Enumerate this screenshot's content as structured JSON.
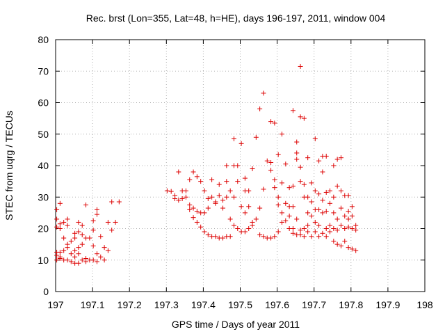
{
  "chart_data": {
    "type": "scatter",
    "title": "Rec. brst (Lon=355, Lat=48, h=HE), days 196-197, 2011, window 004",
    "xlabel": "GPS time / Days of year 2011",
    "ylabel": "STEC from uqrg / TECUs",
    "xlim": [
      197,
      198
    ],
    "ylim": [
      0,
      80
    ],
    "xticks": [
      197,
      197.1,
      197.2,
      197.3,
      197.4,
      197.5,
      197.6,
      197.7,
      197.8,
      197.9,
      198
    ],
    "xtick_labels": [
      "197",
      "197.1",
      "197.2",
      "197.3",
      "197.4",
      "197.5",
      "197.6",
      "197.7",
      "197.8",
      "197.9",
      "198"
    ],
    "yticks": [
      0,
      10,
      20,
      30,
      40,
      50,
      60,
      70,
      80
    ],
    "ytick_labels": [
      "0",
      "10",
      "20",
      "30",
      "40",
      "50",
      "60",
      "70",
      "80"
    ],
    "grid": true,
    "marker": "+",
    "color": "#dd0000",
    "series": [
      {
        "name": "STEC",
        "points": [
          [
            197.003,
            26
          ],
          [
            197.003,
            23
          ],
          [
            197.003,
            20.5
          ],
          [
            197.003,
            12.5
          ],
          [
            197.003,
            11.5
          ],
          [
            197.003,
            10
          ],
          [
            197.012,
            28
          ],
          [
            197.012,
            21.5
          ],
          [
            197.012,
            20
          ],
          [
            197.012,
            12.5
          ],
          [
            197.012,
            11
          ],
          [
            197.012,
            10.5
          ],
          [
            197.022,
            22
          ],
          [
            197.022,
            17
          ],
          [
            197.022,
            13
          ],
          [
            197.022,
            10
          ],
          [
            197.032,
            23
          ],
          [
            197.032,
            21
          ],
          [
            197.032,
            15
          ],
          [
            197.032,
            14
          ],
          [
            197.032,
            10
          ],
          [
            197.042,
            16
          ],
          [
            197.042,
            12
          ],
          [
            197.042,
            9.5
          ],
          [
            197.052,
            18.5
          ],
          [
            197.052,
            17
          ],
          [
            197.052,
            13
          ],
          [
            197.052,
            11
          ],
          [
            197.052,
            9
          ],
          [
            197.062,
            22
          ],
          [
            197.062,
            19
          ],
          [
            197.062,
            14
          ],
          [
            197.062,
            12
          ],
          [
            197.062,
            9
          ],
          [
            197.072,
            21
          ],
          [
            197.072,
            18
          ],
          [
            197.072,
            15
          ],
          [
            197.072,
            10
          ],
          [
            197.082,
            27.5
          ],
          [
            197.082,
            17
          ],
          [
            197.082,
            10.5
          ],
          [
            197.082,
            9.5
          ],
          [
            197.092,
            17
          ],
          [
            197.092,
            10
          ],
          [
            197.102,
            22.5
          ],
          [
            197.102,
            19.5
          ],
          [
            197.102,
            14.5
          ],
          [
            197.102,
            10
          ],
          [
            197.112,
            26
          ],
          [
            197.112,
            24.5
          ],
          [
            197.112,
            12
          ],
          [
            197.112,
            9.5
          ],
          [
            197.122,
            17.5
          ],
          [
            197.122,
            11
          ],
          [
            197.132,
            14
          ],
          [
            197.132,
            10
          ],
          [
            197.142,
            22
          ],
          [
            197.142,
            13
          ],
          [
            197.152,
            28.5
          ],
          [
            197.152,
            19.5
          ],
          [
            197.162,
            22
          ],
          [
            197.172,
            28.5
          ],
          [
            197.302,
            32
          ],
          [
            197.313,
            31.8
          ],
          [
            197.323,
            29.5
          ],
          [
            197.323,
            30.5
          ],
          [
            197.333,
            38
          ],
          [
            197.333,
            29
          ],
          [
            197.343,
            32
          ],
          [
            197.343,
            29.5
          ],
          [
            197.353,
            32
          ],
          [
            197.353,
            30
          ],
          [
            197.363,
            35.5
          ],
          [
            197.363,
            27.5
          ],
          [
            197.363,
            26
          ],
          [
            197.373,
            38
          ],
          [
            197.373,
            26.5
          ],
          [
            197.373,
            23.5
          ],
          [
            197.383,
            36.5
          ],
          [
            197.383,
            25.5
          ],
          [
            197.383,
            22
          ],
          [
            197.393,
            35
          ],
          [
            197.393,
            25
          ],
          [
            197.393,
            20.5
          ],
          [
            197.403,
            32
          ],
          [
            197.403,
            25
          ],
          [
            197.403,
            19
          ],
          [
            197.413,
            29.5
          ],
          [
            197.413,
            26.5
          ],
          [
            197.413,
            18
          ],
          [
            197.423,
            35.5
          ],
          [
            197.423,
            30
          ],
          [
            197.423,
            17.5
          ],
          [
            197.433,
            28.5
          ],
          [
            197.433,
            28
          ],
          [
            197.433,
            17.5
          ],
          [
            197.443,
            34
          ],
          [
            197.443,
            30.5
          ],
          [
            197.443,
            17
          ],
          [
            197.453,
            29
          ],
          [
            197.453,
            26.5
          ],
          [
            197.453,
            17
          ],
          [
            197.463,
            40
          ],
          [
            197.463,
            35
          ],
          [
            197.463,
            30
          ],
          [
            197.463,
            17.5
          ],
          [
            197.473,
            32
          ],
          [
            197.473,
            23
          ],
          [
            197.473,
            17.5
          ],
          [
            197.483,
            48.5
          ],
          [
            197.483,
            40
          ],
          [
            197.483,
            30
          ],
          [
            197.483,
            21
          ],
          [
            197.493,
            40
          ],
          [
            197.493,
            35
          ],
          [
            197.493,
            20
          ],
          [
            197.503,
            47
          ],
          [
            197.503,
            27
          ],
          [
            197.503,
            19
          ],
          [
            197.513,
            36
          ],
          [
            197.513,
            32
          ],
          [
            197.513,
            25
          ],
          [
            197.513,
            19
          ],
          [
            197.523,
            32
          ],
          [
            197.523,
            27
          ],
          [
            197.523,
            20
          ],
          [
            197.533,
            39
          ],
          [
            197.533,
            22
          ],
          [
            197.533,
            21
          ],
          [
            197.543,
            49
          ],
          [
            197.543,
            23
          ],
          [
            197.553,
            58
          ],
          [
            197.553,
            26.5
          ],
          [
            197.553,
            18
          ],
          [
            197.563,
            63
          ],
          [
            197.563,
            32.5
          ],
          [
            197.563,
            17.5
          ],
          [
            197.573,
            41.5
          ],
          [
            197.573,
            17
          ],
          [
            197.583,
            54
          ],
          [
            197.583,
            41
          ],
          [
            197.583,
            38.5
          ],
          [
            197.583,
            17
          ],
          [
            197.593,
            53.5
          ],
          [
            197.593,
            35.5
          ],
          [
            197.593,
            33
          ],
          [
            197.593,
            17.5
          ],
          [
            197.603,
            43.5
          ],
          [
            197.603,
            30
          ],
          [
            197.603,
            27.5
          ],
          [
            197.603,
            19
          ],
          [
            197.613,
            50
          ],
          [
            197.613,
            34.5
          ],
          [
            197.613,
            25
          ],
          [
            197.613,
            22
          ],
          [
            197.623,
            40.5
          ],
          [
            197.623,
            28
          ],
          [
            197.623,
            22.5
          ],
          [
            197.633,
            33
          ],
          [
            197.633,
            27
          ],
          [
            197.633,
            24
          ],
          [
            197.633,
            20
          ],
          [
            197.643,
            57.5
          ],
          [
            197.643,
            33.5
          ],
          [
            197.643,
            27
          ],
          [
            197.643,
            20
          ],
          [
            197.643,
            18.5
          ],
          [
            197.653,
            47.5
          ],
          [
            197.653,
            44
          ],
          [
            197.653,
            42
          ],
          [
            197.653,
            23
          ],
          [
            197.653,
            18
          ],
          [
            197.663,
            71.5
          ],
          [
            197.663,
            55.5
          ],
          [
            197.663,
            39.5
          ],
          [
            197.663,
            35
          ],
          [
            197.663,
            19.5
          ],
          [
            197.663,
            18
          ],
          [
            197.673,
            55
          ],
          [
            197.673,
            34
          ],
          [
            197.673,
            30
          ],
          [
            197.673,
            20
          ],
          [
            197.673,
            17.5
          ],
          [
            197.683,
            42.5
          ],
          [
            197.683,
            30
          ],
          [
            197.683,
            25
          ],
          [
            197.683,
            21
          ],
          [
            197.683,
            19
          ],
          [
            197.693,
            34.5
          ],
          [
            197.693,
            28.5
          ],
          [
            197.693,
            24
          ],
          [
            197.693,
            17.5
          ],
          [
            197.703,
            48.5
          ],
          [
            197.703,
            32
          ],
          [
            197.703,
            26
          ],
          [
            197.703,
            22
          ],
          [
            197.703,
            19
          ],
          [
            197.713,
            41.5
          ],
          [
            197.713,
            31
          ],
          [
            197.713,
            26
          ],
          [
            197.713,
            21
          ],
          [
            197.713,
            17.5
          ],
          [
            197.723,
            43
          ],
          [
            197.723,
            38
          ],
          [
            197.723,
            29
          ],
          [
            197.723,
            25
          ],
          [
            197.723,
            18.5
          ],
          [
            197.733,
            43
          ],
          [
            197.733,
            31.5
          ],
          [
            197.733,
            25.5
          ],
          [
            197.733,
            20
          ],
          [
            197.733,
            17.5
          ],
          [
            197.743,
            32
          ],
          [
            197.743,
            28
          ],
          [
            197.743,
            21
          ],
          [
            197.743,
            19
          ],
          [
            197.753,
            40
          ],
          [
            197.753,
            30
          ],
          [
            197.753,
            25
          ],
          [
            197.753,
            20
          ],
          [
            197.753,
            16
          ],
          [
            197.763,
            42
          ],
          [
            197.763,
            33.5
          ],
          [
            197.763,
            23
          ],
          [
            197.763,
            19.5
          ],
          [
            197.763,
            15
          ],
          [
            197.773,
            42.5
          ],
          [
            197.773,
            32
          ],
          [
            197.773,
            26.5
          ],
          [
            197.773,
            21
          ],
          [
            197.773,
            14.5
          ],
          [
            197.783,
            30.5
          ],
          [
            197.783,
            24
          ],
          [
            197.783,
            20
          ],
          [
            197.783,
            16
          ],
          [
            197.793,
            30.5
          ],
          [
            197.793,
            25.5
          ],
          [
            197.793,
            23
          ],
          [
            197.793,
            20.5
          ],
          [
            197.793,
            14
          ],
          [
            197.803,
            27
          ],
          [
            197.803,
            24
          ],
          [
            197.803,
            20
          ],
          [
            197.803,
            13.5
          ],
          [
            197.813,
            21
          ],
          [
            197.813,
            19.5
          ],
          [
            197.813,
            13
          ]
        ]
      }
    ]
  }
}
